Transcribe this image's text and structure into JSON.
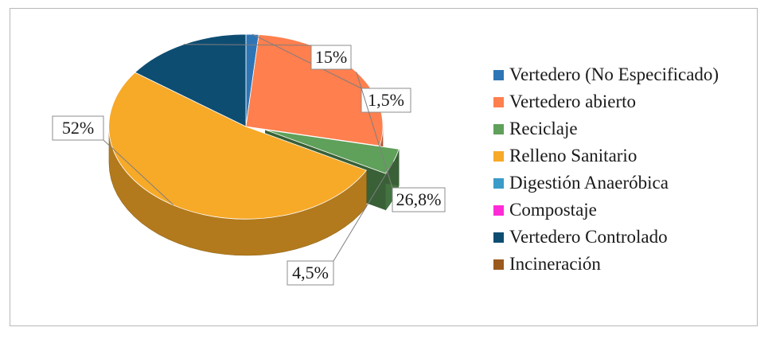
{
  "chart_data": {
    "type": "pie",
    "style": "3d-exploded",
    "legend_position": "right",
    "series": [
      {
        "categories": [
          "Vertedero (No Especificado)",
          "Vertedero abierto",
          "Reciclaje",
          "Relleno Sanitario",
          "Digestión Anaeróbica",
          "Compostaje",
          "Vertedero Controlado",
          "Incineración"
        ],
        "values": [
          1.5,
          26.8,
          4.5,
          52,
          0,
          0,
          15,
          0
        ],
        "labels": [
          "1,5%",
          "26,8%",
          "4,5%",
          "52%",
          "",
          "",
          "15%",
          ""
        ],
        "colors": [
          "#2e75b6",
          "#ff7f4e",
          "#5fa05a",
          "#f7a928",
          "#3a9bc8",
          "#ff2bd6",
          "#0e4d72",
          "#9a5a1e"
        ]
      }
    ]
  }
}
